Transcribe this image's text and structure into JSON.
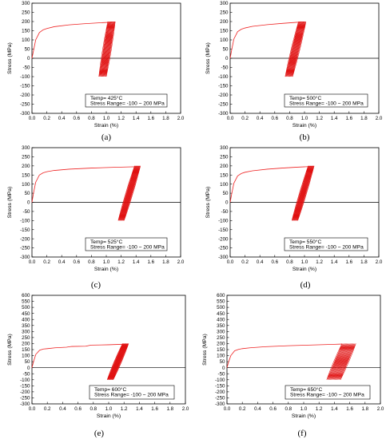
{
  "chart_data": [
    {
      "type": "line",
      "panel_label": "(a)",
      "annotation": {
        "line1": "Temp= 425°C",
        "line2": "Stress Range= -100 ~ 200 MPa"
      },
      "xlabel": "Strain (%)",
      "ylabel": "Stress (MPa)",
      "xlim": [
        0.0,
        2.0
      ],
      "ylim": [
        -300,
        300
      ],
      "xticks": [
        "0.0",
        "0.2",
        "0.4",
        "0.6",
        "0.8",
        "1.0",
        "1.2",
        "1.4",
        "1.6",
        "1.8",
        "2.0"
      ],
      "yticks": [
        "300",
        "250",
        "200",
        "150",
        "100",
        "50",
        "0",
        "-50",
        "-100",
        "-150",
        "-200",
        "-250",
        "-300"
      ],
      "series": [
        {
          "x": [
            0.0,
            0.02,
            0.05,
            0.1,
            0.15,
            0.2,
            0.3,
            0.5,
            0.7,
            0.9,
            1.05,
            1.12
          ],
          "y": [
            0,
            40,
            100,
            140,
            155,
            162,
            172,
            182,
            188,
            193,
            196,
            197
          ]
        }
      ],
      "cycles": {
        "count": 12,
        "loop_width_strain": 0.12,
        "start_peak_strain": 1.02,
        "end_peak_strain": 1.12,
        "peak_stress": 200,
        "valley_stress": -100
      }
    },
    {
      "type": "line",
      "panel_label": "(b)",
      "annotation": {
        "line1": "Temp= 500°C",
        "line2": "Stress Range= -100 ~ 200 MPa"
      },
      "xlabel": "Strain (%)",
      "ylabel": "Stress (MPa)",
      "xlim": [
        0.0,
        2.0
      ],
      "ylim": [
        -300,
        300
      ],
      "xticks": [
        "0.0",
        "0.2",
        "0.4",
        "0.6",
        "0.8",
        "1.0",
        "1.2",
        "1.4",
        "1.6",
        "1.8",
        "2.0"
      ],
      "yticks": [
        "300",
        "250",
        "200",
        "150",
        "100",
        "50",
        "0",
        "-50",
        "-100",
        "-150",
        "-200",
        "-250",
        "-300"
      ],
      "series": [
        {
          "x": [
            0.0,
            0.02,
            0.05,
            0.1,
            0.15,
            0.2,
            0.3,
            0.5,
            0.7,
            0.9,
            1.0
          ],
          "y": [
            0,
            45,
            105,
            145,
            158,
            165,
            174,
            183,
            190,
            196,
            198
          ]
        }
      ],
      "cycles": {
        "count": 12,
        "loop_width_strain": 0.18,
        "start_peak_strain": 0.92,
        "end_peak_strain": 1.02,
        "peak_stress": 200,
        "valley_stress": -100
      }
    },
    {
      "type": "line",
      "panel_label": "(c)",
      "annotation": {
        "line1": "Temp= 525°C",
        "line2": "Stress Range= -100 ~ 200 MPa"
      },
      "xlabel": "Strain (%)",
      "ylabel": "Stress (MPa)",
      "xlim": [
        0.0,
        2.0
      ],
      "ylim": [
        -300,
        300
      ],
      "xticks": [
        "0.0",
        "0.2",
        "0.4",
        "0.6",
        "0.8",
        "1.0",
        "1.2",
        "1.4",
        "1.6",
        "1.8",
        "2.0"
      ],
      "yticks": [
        "300",
        "250",
        "200",
        "150",
        "100",
        "50",
        "0",
        "-50",
        "-100",
        "-150",
        "-200",
        "-250",
        "-300"
      ],
      "series": [
        {
          "x": [
            0.0,
            0.02,
            0.05,
            0.1,
            0.15,
            0.2,
            0.3,
            0.5,
            0.8,
            1.1,
            1.35,
            1.45
          ],
          "y": [
            0,
            50,
            110,
            150,
            162,
            168,
            175,
            182,
            188,
            192,
            195,
            196
          ]
        }
      ],
      "cycles": {
        "count": 12,
        "loop_width_strain": 0.22,
        "start_peak_strain": 1.38,
        "end_peak_strain": 1.46,
        "peak_stress": 200,
        "valley_stress": -100
      }
    },
    {
      "type": "line",
      "panel_label": "(d)",
      "annotation": {
        "line1": "Temp= 550°C",
        "line2": "Stress Range= -100 ~ 200 MPa"
      },
      "xlabel": "Strain (%)",
      "ylabel": "Stress (MPa)",
      "xlim": [
        0.0,
        2.0
      ],
      "ylim": [
        -300,
        300
      ],
      "xticks": [
        "0.0",
        "0.2",
        "0.4",
        "0.6",
        "0.8",
        "1.0",
        "1.2",
        "1.4",
        "1.6",
        "1.8",
        "2.0"
      ],
      "yticks": [
        "300",
        "250",
        "200",
        "150",
        "100",
        "50",
        "0",
        "-50",
        "-100",
        "-150",
        "-200",
        "-250",
        "-300"
      ],
      "series": [
        {
          "x": [
            0.0,
            0.02,
            0.05,
            0.1,
            0.15,
            0.2,
            0.3,
            0.5,
            0.7,
            0.9,
            1.05,
            1.12
          ],
          "y": [
            0,
            45,
            105,
            145,
            158,
            165,
            173,
            182,
            188,
            193,
            196,
            198
          ]
        }
      ],
      "cycles": {
        "count": 12,
        "loop_width_strain": 0.22,
        "start_peak_strain": 1.05,
        "end_peak_strain": 1.13,
        "peak_stress": 200,
        "valley_stress": -100
      }
    },
    {
      "type": "line",
      "panel_label": "(e)",
      "annotation": {
        "line1": "Temp= 600°C",
        "line2": "Stress Range= -100 ~ 200 MPa"
      },
      "xlabel": "Strain (%)",
      "ylabel": "Stress (MPa)",
      "xlim": [
        0.0,
        2.0
      ],
      "ylim": [
        -300,
        600
      ],
      "xticks": [
        "0.0",
        "0.2",
        "0.4",
        "0.6",
        "0.8",
        "1.0",
        "1.2",
        "1.4",
        "1.6",
        "1.8",
        "2.0"
      ],
      "yticks": [
        "600",
        "550",
        "500",
        "450",
        "400",
        "350",
        "300",
        "250",
        "200",
        "150",
        "100",
        "50",
        "0",
        "-50",
        "-100",
        "-150",
        "-200",
        "-250",
        "-300"
      ],
      "series": [
        {
          "x": [
            0.0,
            0.02,
            0.05,
            0.1,
            0.15,
            0.2,
            0.3,
            0.45,
            0.5,
            0.52,
            0.7,
            0.75,
            0.77,
            1.0,
            1.25
          ],
          "y": [
            0,
            50,
            110,
            145,
            155,
            158,
            165,
            170,
            175,
            176,
            178,
            185,
            187,
            190,
            196
          ]
        }
      ],
      "cycles": {
        "count": 14,
        "loop_width_strain": 0.2,
        "start_peak_strain": 1.18,
        "end_peak_strain": 1.26,
        "peak_stress": 200,
        "valley_stress": -100
      }
    },
    {
      "type": "line",
      "panel_label": "(f)",
      "annotation": {
        "line1": "Temp= 650°C",
        "line2": "Stress Range= -100 ~ 200 MPa"
      },
      "xlabel": "Strain (%)",
      "ylabel": "Stress (MPa)",
      "xlim": [
        0.0,
        2.0
      ],
      "ylim": [
        -300,
        600
      ],
      "xticks": [
        "0.0",
        "0.2",
        "0.4",
        "0.6",
        "0.8",
        "1.0",
        "1.2",
        "1.4",
        "1.6",
        "1.8",
        "2.0"
      ],
      "yticks": [
        "600",
        "550",
        "500",
        "450",
        "400",
        "350",
        "300",
        "250",
        "200",
        "150",
        "100",
        "50",
        "0",
        "-50",
        "-100",
        "-150",
        "-200",
        "-250",
        "-300"
      ],
      "series": [
        {
          "x": [
            0.0,
            0.02,
            0.05,
            0.1,
            0.15,
            0.2,
            0.3,
            0.5,
            0.8,
            1.1,
            1.4,
            1.5
          ],
          "y": [
            0,
            45,
            100,
            140,
            152,
            158,
            165,
            174,
            182,
            188,
            194,
            196
          ]
        }
      ],
      "cycles": {
        "count": 16,
        "loop_width_strain": 0.2,
        "start_peak_strain": 1.5,
        "end_peak_strain": 1.68,
        "peak_stress": 200,
        "valley_stress": -100
      }
    }
  ]
}
